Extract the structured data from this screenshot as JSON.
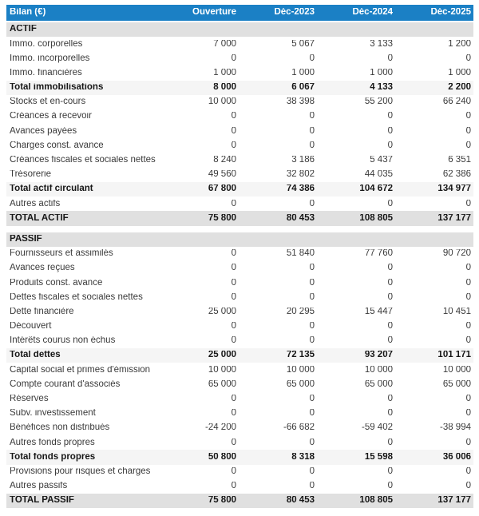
{
  "colors": {
    "header_bg": "#1b80c5",
    "header_text": "#ffffff",
    "section_bg": "#e0e0e0",
    "subtotal_bg": "#f5f5f5"
  },
  "table": {
    "header": {
      "title": "Bilan (€)",
      "columns": [
        "Ouverture",
        "Déc-2023",
        "Déc-2024",
        "Déc-2025"
      ]
    },
    "rows": [
      {
        "type": "section",
        "label": "ACTIF"
      },
      {
        "type": "item",
        "label": "Immo. corporelles",
        "values": [
          "7 000",
          "5 067",
          "3 133",
          "1 200"
        ]
      },
      {
        "type": "item",
        "label": "Immo. incorporelles",
        "values": [
          "0",
          "0",
          "0",
          "0"
        ]
      },
      {
        "type": "item",
        "label": "Immo. financières",
        "values": [
          "1 000",
          "1 000",
          "1 000",
          "1 000"
        ]
      },
      {
        "type": "subtotal",
        "label": "Total immobilisations",
        "values": [
          "8 000",
          "6 067",
          "4 133",
          "2 200"
        ]
      },
      {
        "type": "item",
        "label": "Stocks et en-cours",
        "values": [
          "10 000",
          "38 398",
          "55 200",
          "66 240"
        ]
      },
      {
        "type": "item",
        "label": "Créances à recevoir",
        "values": [
          "0",
          "0",
          "0",
          "0"
        ]
      },
      {
        "type": "item",
        "label": "Avances payées",
        "values": [
          "0",
          "0",
          "0",
          "0"
        ]
      },
      {
        "type": "item",
        "label": "Charges const. avance",
        "values": [
          "0",
          "0",
          "0",
          "0"
        ]
      },
      {
        "type": "item",
        "label": "Créances fiscales et sociales nettes",
        "values": [
          "8 240",
          "3 186",
          "5 437",
          "6 351"
        ]
      },
      {
        "type": "item",
        "label": "Trésorerie",
        "values": [
          "49 560",
          "32 802",
          "44 035",
          "62 386"
        ]
      },
      {
        "type": "subtotal",
        "label": "Total actif circulant",
        "values": [
          "67 800",
          "74 386",
          "104 672",
          "134 977"
        ]
      },
      {
        "type": "item",
        "label": "Autres actifs",
        "values": [
          "0",
          "0",
          "0",
          "0"
        ]
      },
      {
        "type": "total",
        "label": "TOTAL ACTIF",
        "values": [
          "75 800",
          "80 453",
          "108 805",
          "137 177"
        ]
      },
      {
        "type": "spacer"
      },
      {
        "type": "section",
        "label": "PASSIF"
      },
      {
        "type": "item",
        "label": "Fournisseurs et assimilés",
        "values": [
          "0",
          "51 840",
          "77 760",
          "90 720"
        ]
      },
      {
        "type": "item",
        "label": "Avances reçues",
        "values": [
          "0",
          "0",
          "0",
          "0"
        ]
      },
      {
        "type": "item",
        "label": "Produits const. avance",
        "values": [
          "0",
          "0",
          "0",
          "0"
        ]
      },
      {
        "type": "item",
        "label": "Dettes fiscales et sociales nettes",
        "values": [
          "0",
          "0",
          "0",
          "0"
        ]
      },
      {
        "type": "item",
        "label": "Dette financière",
        "values": [
          "25 000",
          "20 295",
          "15 447",
          "10 451"
        ]
      },
      {
        "type": "item",
        "label": "Découvert",
        "values": [
          "0",
          "0",
          "0",
          "0"
        ]
      },
      {
        "type": "item",
        "label": "Intérêts courus non échus",
        "values": [
          "0",
          "0",
          "0",
          "0"
        ]
      },
      {
        "type": "subtotal",
        "label": "Total dettes",
        "values": [
          "25 000",
          "72 135",
          "93 207",
          "101 171"
        ]
      },
      {
        "type": "item",
        "label": "Capital social et primes d'émission",
        "values": [
          "10 000",
          "10 000",
          "10 000",
          "10 000"
        ]
      },
      {
        "type": "item",
        "label": "Compte courant d'associés",
        "values": [
          "65 000",
          "65 000",
          "65 000",
          "65 000"
        ]
      },
      {
        "type": "item",
        "label": "Réserves",
        "values": [
          "0",
          "0",
          "0",
          "0"
        ]
      },
      {
        "type": "item",
        "label": "Subv. investissement",
        "values": [
          "0",
          "0",
          "0",
          "0"
        ]
      },
      {
        "type": "item",
        "label": "Bénéfices non distribués",
        "values": [
          "-24 200",
          "-66 682",
          "-59 402",
          "-38 994"
        ]
      },
      {
        "type": "item",
        "label": "Autres fonds propres",
        "values": [
          "0",
          "0",
          "0",
          "0"
        ]
      },
      {
        "type": "subtotal",
        "label": "Total fonds propres",
        "values": [
          "50 800",
          "8 318",
          "15 598",
          "36 006"
        ]
      },
      {
        "type": "item",
        "label": "Provisions pour risques et charges",
        "values": [
          "0",
          "0",
          "0",
          "0"
        ]
      },
      {
        "type": "item",
        "label": "Autres passifs",
        "values": [
          "0",
          "0",
          "0",
          "0"
        ]
      },
      {
        "type": "total",
        "label": "TOTAL PASSIF",
        "values": [
          "75 800",
          "80 453",
          "108 805",
          "137 177"
        ]
      }
    ]
  }
}
